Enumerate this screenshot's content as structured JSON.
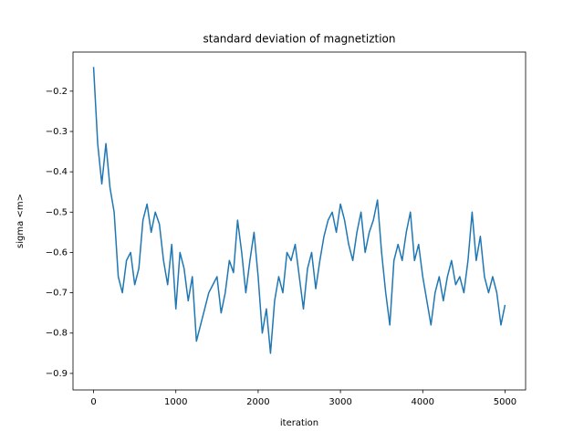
{
  "chart_data": {
    "type": "line",
    "title": "standard deviation of magnetiztion",
    "x_label": "iteration",
    "y_label": "sigma <m>",
    "x": [
      0,
      50,
      100,
      150,
      200,
      250,
      300,
      350,
      400,
      450,
      500,
      550,
      600,
      650,
      700,
      750,
      800,
      850,
      900,
      950,
      1000,
      1050,
      1100,
      1150,
      1200,
      1250,
      1300,
      1350,
      1400,
      1450,
      1500,
      1550,
      1600,
      1650,
      1700,
      1750,
      1800,
      1850,
      1900,
      1950,
      2000,
      2050,
      2100,
      2150,
      2200,
      2250,
      2300,
      2350,
      2400,
      2450,
      2500,
      2550,
      2600,
      2650,
      2700,
      2750,
      2800,
      2850,
      2900,
      2950,
      3000,
      3050,
      3100,
      3150,
      3200,
      3250,
      3300,
      3350,
      3400,
      3450,
      3500,
      3550,
      3600,
      3650,
      3700,
      3750,
      3800,
      3850,
      3900,
      3950,
      4000,
      4050,
      4100,
      4150,
      4200,
      4250,
      4300,
      4350,
      4400,
      4450,
      4500,
      4550,
      4600,
      4650,
      4700,
      4750,
      4800,
      4850,
      4900,
      4950,
      5000
    ],
    "series": [
      {
        "name": "sigma <m>",
        "color": "#1f77b4",
        "values": [
          -0.14,
          -0.33,
          -0.43,
          -0.33,
          -0.44,
          -0.5,
          -0.66,
          -0.7,
          -0.62,
          -0.6,
          -0.68,
          -0.64,
          -0.52,
          -0.48,
          -0.55,
          -0.5,
          -0.53,
          -0.62,
          -0.68,
          -0.58,
          -0.74,
          -0.6,
          -0.64,
          -0.72,
          -0.66,
          -0.82,
          -0.78,
          -0.74,
          -0.7,
          -0.68,
          -0.66,
          -0.75,
          -0.7,
          -0.62,
          -0.65,
          -0.52,
          -0.6,
          -0.7,
          -0.62,
          -0.55,
          -0.66,
          -0.8,
          -0.74,
          -0.85,
          -0.72,
          -0.66,
          -0.7,
          -0.6,
          -0.62,
          -0.58,
          -0.66,
          -0.74,
          -0.64,
          -0.6,
          -0.69,
          -0.62,
          -0.56,
          -0.52,
          -0.5,
          -0.55,
          -0.48,
          -0.52,
          -0.58,
          -0.62,
          -0.55,
          -0.5,
          -0.6,
          -0.55,
          -0.52,
          -0.47,
          -0.6,
          -0.7,
          -0.78,
          -0.62,
          -0.58,
          -0.62,
          -0.55,
          -0.5,
          -0.62,
          -0.58,
          -0.66,
          -0.72,
          -0.78,
          -0.7,
          -0.66,
          -0.72,
          -0.66,
          -0.62,
          -0.68,
          -0.66,
          -0.7,
          -0.62,
          -0.5,
          -0.62,
          -0.56,
          -0.66,
          -0.7,
          -0.66,
          -0.7,
          -0.78,
          -0.73
        ]
      }
    ],
    "xlim": [
      -250,
      5250
    ],
    "xticks": [
      0,
      1000,
      2000,
      3000,
      4000,
      5000
    ],
    "ylim": [
      -0.941,
      -0.103
    ],
    "yticks": [
      {
        "value": -0.9,
        "label": "−0.9"
      },
      {
        "value": -0.8,
        "label": "−0.8"
      },
      {
        "value": -0.7,
        "label": "−0.7"
      },
      {
        "value": -0.6,
        "label": "−0.6"
      },
      {
        "value": -0.5,
        "label": "−0.5"
      },
      {
        "value": -0.4,
        "label": "−0.4"
      },
      {
        "value": -0.3,
        "label": "−0.3"
      },
      {
        "value": -0.2,
        "label": "−0.2"
      }
    ],
    "grid": false
  }
}
